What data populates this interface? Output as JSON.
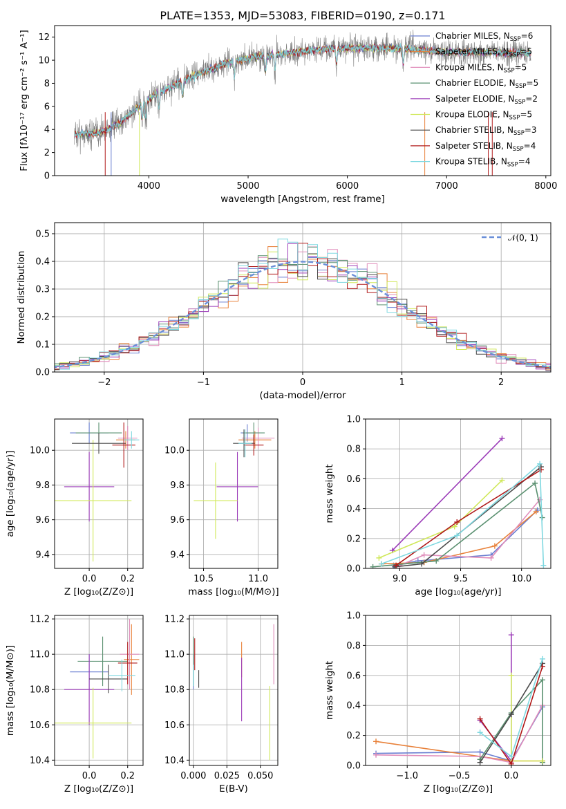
{
  "title": "PLATE=1353, MJD=53083, FIBERID=0190, z=0.171",
  "colors": {
    "chabrier_miles": "#6a7fd1",
    "salpeter_miles": "#e8813a",
    "kroupa_miles": "#e08cba",
    "chabrier_elodie": "#5a9070",
    "salpeter_elodie": "#9b3bb8",
    "kroupa_elodie": "#d0e85a",
    "chabrier_stelib": "#4a4a4a",
    "salpeter_stelib": "#b01818",
    "kroupa_stelib": "#7fd8e0",
    "gaussian": "#6a8fd8",
    "spectrum_data": "#7f7f7f"
  },
  "chart_data": [
    {
      "panel": "spectrum",
      "type": "line",
      "xlabel": "wavelength [Angstrom, rest frame]",
      "ylabel": "Flux [fλ10⁻¹⁷ erg cm⁻² s⁻¹ A⁻¹]",
      "xlim": [
        3050,
        8050
      ],
      "ylim": [
        0,
        13
      ],
      "x_ticks": [
        "4000",
        "5000",
        "6000",
        "7000",
        "8000"
      ],
      "y_ticks": [
        "0",
        "2",
        "4",
        "6",
        "8",
        "10",
        "12"
      ],
      "continuum": {
        "x": [
          3250,
          3500,
          3700,
          3900,
          4100,
          4300,
          4500,
          4800,
          5100,
          5400,
          5800,
          6200,
          6600,
          7000,
          7400,
          7850
        ],
        "y": [
          3.6,
          3.7,
          4.5,
          6.0,
          7.2,
          8.0,
          8.8,
          9.8,
          10.3,
          10.6,
          11.0,
          11.1,
          11.0,
          10.7,
          10.7,
          10.6
        ]
      },
      "legend": [
        {
          "name": "Chabrier MILES",
          "nssp": "6"
        },
        {
          "name": "Salpeter MILES",
          "nssp": "5"
        },
        {
          "name": "Kroupa MILES",
          "nssp": "5"
        },
        {
          "name": "Chabrier ELODIE",
          "nssp": "5"
        },
        {
          "name": "Salpeter ELODIE",
          "nssp": "2"
        },
        {
          "name": "Kroupa ELODIE",
          "nssp": "5"
        },
        {
          "name": "Chabrier STELIB",
          "nssp": "3"
        },
        {
          "name": "Salpeter STELIB",
          "nssp": "4"
        },
        {
          "name": "Kroupa STELIB",
          "nssp": "4"
        }
      ],
      "legend_prefix": "N",
      "legend_sub": "SSP",
      "legend_position": "upper-right"
    },
    {
      "panel": "residuals",
      "type": "histogram",
      "xlabel": "(data-model)/error",
      "ylabel": "Normed distribution",
      "xlim": [
        -2.5,
        2.5
      ],
      "ylim": [
        0,
        0.54
      ],
      "x_ticks": [
        "−2",
        "−1",
        "0",
        "1",
        "2"
      ],
      "y_ticks": [
        "0.0",
        "0.1",
        "0.2",
        "0.3",
        "0.4",
        "0.5"
      ],
      "bin_width": 0.1,
      "gaussian_label": "𝒩(0, 1)",
      "grid": true
    },
    {
      "panel": "age_vs_Z",
      "type": "errorbar",
      "xlabel": "Z [log₁₀(Z/Z⊙)]",
      "ylabel": "age  [log₁₀(age/yr)]",
      "xlim": [
        -0.18,
        0.28
      ],
      "ylim": [
        9.32,
        10.18
      ],
      "x_ticks": [
        "0.0",
        "0.2"
      ],
      "y_ticks": [
        "9.4",
        "9.6",
        "9.8",
        "10.0"
      ],
      "points": [
        {
          "x": 0.0,
          "y": 10.1,
          "xerr": 0.1,
          "yerr": 0.06
        },
        {
          "x": 0.19,
          "y": 10.06,
          "xerr": 0.05,
          "yerr": 0.05
        },
        {
          "x": 0.2,
          "y": 10.07,
          "xerr": 0.05,
          "yerr": 0.07
        },
        {
          "x": 0.05,
          "y": 10.1,
          "xerr": 0.12,
          "yerr": 0.06
        },
        {
          "x": 0.0,
          "y": 9.79,
          "xerr": 0.13,
          "yerr": 0.2
        },
        {
          "x": 0.02,
          "y": 9.71,
          "xerr": 0.2,
          "yerr": 0.35
        },
        {
          "x": 0.05,
          "y": 10.04,
          "xerr": 0.14,
          "yerr": 0.06
        },
        {
          "x": 0.18,
          "y": 10.03,
          "xerr": 0.06,
          "yerr": 0.13
        },
        {
          "x": 0.22,
          "y": 10.06,
          "xerr": 0.04,
          "yerr": 0.05
        }
      ]
    },
    {
      "panel": "age_vs_mass",
      "type": "errorbar",
      "xlabel": "mass [log₁₀(M/M⊙)]",
      "ylabel": "",
      "xlim": [
        10.37,
        11.18
      ],
      "ylim": [
        9.32,
        10.18
      ],
      "x_ticks": [
        "10.5",
        "11.0"
      ],
      "y_ticks": [
        "9.4",
        "9.6",
        "9.8",
        "10.0"
      ],
      "points": [
        {
          "x": 10.9,
          "y": 10.1,
          "xerr": 0.06,
          "yerr": 0.05
        },
        {
          "x": 10.97,
          "y": 10.06,
          "xerr": 0.15,
          "yerr": 0.05
        },
        {
          "x": 11.0,
          "y": 10.07,
          "xerr": 0.15,
          "yerr": 0.06
        },
        {
          "x": 10.96,
          "y": 10.1,
          "xerr": 0.1,
          "yerr": 0.06
        },
        {
          "x": 10.81,
          "y": 9.79,
          "xerr": 0.19,
          "yerr": 0.2
        },
        {
          "x": 10.61,
          "y": 9.71,
          "xerr": 0.2,
          "yerr": 0.22
        },
        {
          "x": 10.87,
          "y": 10.04,
          "xerr": 0.1,
          "yerr": 0.08
        },
        {
          "x": 10.96,
          "y": 10.03,
          "xerr": 0.09,
          "yerr": 0.06
        },
        {
          "x": 10.88,
          "y": 10.04,
          "xerr": 0.06,
          "yerr": 0.08
        }
      ]
    },
    {
      "panel": "weight_vs_age",
      "type": "line",
      "xlabel": "age  [log₁₀(age/yr)]",
      "ylabel": "mass weight",
      "xlim": [
        8.72,
        10.24
      ],
      "ylim": [
        0,
        1.0
      ],
      "x_ticks": [
        "9.0",
        "9.5",
        "10.0"
      ],
      "y_ticks": [
        "0.0",
        "0.2",
        "0.4",
        "0.6",
        "0.8",
        "1.0"
      ],
      "series": [
        {
          "age": [
            8.95,
            9.15,
            9.75,
            10.13
          ],
          "w": [
            0.02,
            0.05,
            0.09,
            0.39
          ]
        },
        {
          "age": [
            8.85,
            9.2,
            9.78,
            10.12
          ],
          "w": [
            0.03,
            0.04,
            0.15,
            0.38
          ]
        },
        {
          "age": [
            9.0,
            9.2,
            9.75,
            10.15
          ],
          "w": [
            0.02,
            0.09,
            0.07,
            0.46
          ]
        },
        {
          "age": [
            8.78,
            9.3,
            10.11,
            10.17
          ],
          "w": [
            0.01,
            0.05,
            0.57,
            0.34
          ]
        },
        {
          "age": [
            8.94,
            9.84
          ],
          "w": [
            0.12,
            0.87
          ]
        },
        {
          "age": [
            8.83,
            9.45,
            9.84
          ],
          "w": [
            0.07,
            0.28,
            0.59
          ]
        },
        {
          "age": [
            8.96,
            9.18,
            10.16
          ],
          "w": [
            0.01,
            0.03,
            0.68
          ]
        },
        {
          "age": [
            8.97,
            9.47,
            10.16
          ],
          "w": [
            0.02,
            0.31,
            0.66
          ]
        },
        {
          "age": [
            8.85,
            9.47,
            10.15,
            10.18
          ],
          "w": [
            0.03,
            0.22,
            0.7,
            0.02
          ]
        }
      ]
    },
    {
      "panel": "mass_vs_Z",
      "type": "errorbar",
      "xlabel": "Z [log₁₀(Z/Z⊙)]",
      "ylabel": "mass [log₁₀(M/M⊙)]",
      "xlim": [
        -0.18,
        0.28
      ],
      "ylim": [
        10.37,
        11.22
      ],
      "x_ticks": [
        "0.0",
        "0.2"
      ],
      "y_ticks": [
        "10.4",
        "10.6",
        "10.8",
        "11.0",
        "11.2"
      ],
      "points": [
        {
          "x": 0.0,
          "y": 10.9,
          "xerr": 0.1,
          "yerr": 0.1
        },
        {
          "x": 0.22,
          "y": 10.97,
          "xerr": 0.04,
          "yerr": 0.2
        },
        {
          "x": 0.21,
          "y": 11.0,
          "xerr": 0.05,
          "yerr": 0.2
        },
        {
          "x": 0.07,
          "y": 10.96,
          "xerr": 0.13,
          "yerr": 0.14
        },
        {
          "x": 0.0,
          "y": 10.8,
          "xerr": 0.13,
          "yerr": 0.2
        },
        {
          "x": 0.02,
          "y": 10.61,
          "xerr": 0.2,
          "yerr": 0.2
        },
        {
          "x": 0.1,
          "y": 10.86,
          "xerr": 0.1,
          "yerr": 0.08
        },
        {
          "x": 0.2,
          "y": 10.95,
          "xerr": 0.05,
          "yerr": 0.12
        },
        {
          "x": 0.17,
          "y": 10.88,
          "xerr": 0.07,
          "yerr": 0.09
        }
      ]
    },
    {
      "panel": "mass_vs_EBV",
      "type": "errorbar",
      "xlabel": "E(B-V)",
      "ylabel": "",
      "xlim": [
        -0.003,
        0.063
      ],
      "ylim": [
        10.37,
        11.22
      ],
      "x_ticks": [
        "0.000",
        "0.025",
        "0.050"
      ],
      "y_ticks": [
        "10.4",
        "10.6",
        "10.8",
        "11.0",
        "11.2"
      ],
      "points": [
        {
          "x": 0.0,
          "y": 10.9,
          "yerr": 0.1
        },
        {
          "x": 0.036,
          "y": 10.97,
          "yerr": 0.1
        },
        {
          "x": 0.06,
          "y": 11.0,
          "yerr": 0.17
        },
        {
          "x": 0.0,
          "y": 10.96,
          "yerr": 0.14
        },
        {
          "x": 0.036,
          "y": 10.8,
          "yerr": 0.18
        },
        {
          "x": 0.057,
          "y": 10.61,
          "yerr": 0.21
        },
        {
          "x": 0.004,
          "y": 10.86,
          "yerr": 0.05
        },
        {
          "x": 0.001,
          "y": 11.0,
          "yerr": 0.09
        },
        {
          "x": 0.0,
          "y": 10.88,
          "yerr": 0.06
        }
      ]
    },
    {
      "panel": "weight_vs_Z",
      "type": "line",
      "xlabel": "Z [log₁₀(Z/Z⊙)]",
      "ylabel": "mass weight",
      "xlim": [
        -1.4,
        0.38
      ],
      "ylim": [
        0,
        1.0
      ],
      "x_ticks": [
        "−1.0",
        "−0.5",
        "0.0"
      ],
      "y_ticks": [
        "0.0",
        "0.2",
        "0.4",
        "0.6",
        "0.8",
        "1.0"
      ],
      "series": [
        {
          "z": [
            -1.3,
            -0.3,
            0.0,
            0.3
          ],
          "w": [
            0.08,
            0.09,
            0.03,
            0.39
          ]
        },
        {
          "z": [
            -1.3,
            -0.3,
            0.0,
            0.3
          ],
          "w": [
            0.16,
            0.06,
            0.03,
            0.03
          ]
        },
        {
          "z": [
            -1.3,
            -0.3,
            0.0,
            0.3
          ],
          "w": [
            0.07,
            0.06,
            0.02,
            0.4
          ]
        },
        {
          "z": [
            -0.3,
            0.0,
            0.3,
            0.3
          ],
          "w": [
            0.04,
            0.35,
            0.57,
            0.02
          ]
        },
        {
          "z": [
            -0.3,
            0.0,
            0.0
          ],
          "w": [
            0.3,
            0.03,
            0.87
          ]
        },
        {
          "z": [
            0.0,
            0.0,
            0.3
          ],
          "w": [
            0.6,
            0.03,
            0.03
          ]
        },
        {
          "z": [
            -0.3,
            0.0,
            0.3
          ],
          "w": [
            0.02,
            0.34,
            0.68
          ]
        },
        {
          "z": [
            -0.3,
            0.0,
            0.3
          ],
          "w": [
            0.31,
            0.01,
            0.66
          ]
        },
        {
          "z": [
            -0.3,
            0.0,
            0.3
          ],
          "w": [
            0.22,
            0.06,
            0.71
          ]
        }
      ]
    }
  ]
}
